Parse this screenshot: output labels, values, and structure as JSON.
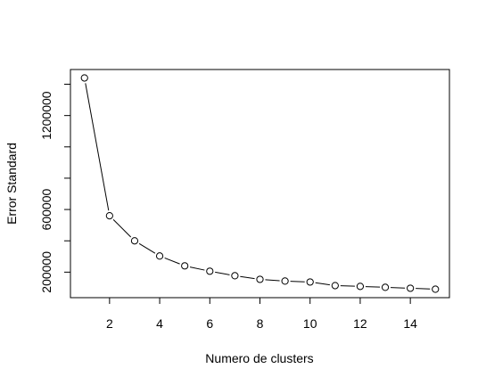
{
  "chart_data": {
    "type": "line",
    "markers": true,
    "x_label": "Numero de clusters",
    "y_label": "Error Standard",
    "x": [
      1,
      2,
      3,
      4,
      5,
      6,
      7,
      8,
      9,
      10,
      11,
      12,
      13,
      14,
      15
    ],
    "values": [
      1440000,
      560000,
      400000,
      303000,
      240000,
      206000,
      177000,
      154000,
      143000,
      137000,
      114000,
      109000,
      103000,
      97000,
      91000
    ],
    "color": "#000000",
    "xlim": [
      0.44,
      15.56
    ],
    "xticks": [
      2,
      4,
      6,
      8,
      10,
      12,
      14
    ],
    "ylim": [
      37000,
      1494000
    ],
    "yticks": [
      200000,
      600000,
      1200000
    ],
    "yminor_ticks": [
      400000,
      800000,
      1000000,
      1400000
    ]
  }
}
